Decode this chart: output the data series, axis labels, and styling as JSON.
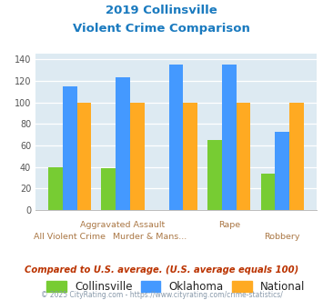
{
  "title_line1": "2019 Collinsville",
  "title_line2": "Violent Crime Comparison",
  "categories": [
    "All Violent Crime",
    "Aggravated Assault",
    "Murder & Mans...",
    "Rape",
    "Robbery"
  ],
  "collinsville": [
    40,
    39,
    0,
    65,
    34
  ],
  "oklahoma": [
    115,
    123,
    135,
    135,
    73
  ],
  "national": [
    100,
    100,
    100,
    100,
    100
  ],
  "collinsville_color": "#77cc33",
  "oklahoma_color": "#4499ff",
  "national_color": "#ffaa22",
  "ylim": [
    0,
    145
  ],
  "yticks": [
    0,
    20,
    40,
    60,
    80,
    100,
    120,
    140
  ],
  "bg_color": "#ddeaf2",
  "title_color": "#1a7abf",
  "note_text": "Compared to U.S. average. (U.S. average equals 100)",
  "footer_text": "© 2025 CityRating.com - https://www.cityrating.com/crime-statistics/",
  "note_color": "#bb3300",
  "footer_color": "#8899aa",
  "label_color": "#aa7744",
  "label_fontsize": 6.8,
  "bar_width": 0.27
}
